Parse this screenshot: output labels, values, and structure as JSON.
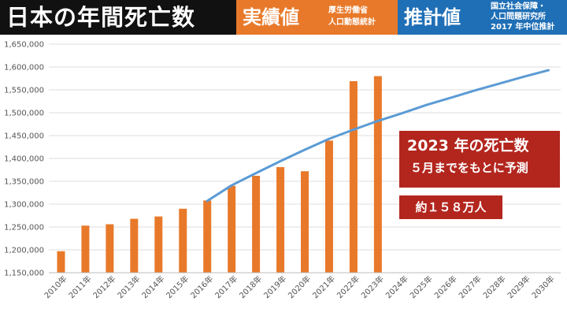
{
  "header": {
    "title": "日本の年間死亡数",
    "actual_label": "実績値",
    "actual_source": [
      "厚生労働省",
      "人口動態統計"
    ],
    "estimate_label": "推計値",
    "estimate_source": [
      "国立社会保障・",
      "人口問題研究所",
      "2017 年中位推計"
    ]
  },
  "callout": {
    "line1": "2023 年の死亡数",
    "line2": "５月までをもとに予測",
    "estimate": "約１５８万人"
  },
  "colors": {
    "header_black": "#111111",
    "actual_orange": "#e8792a",
    "estimate_blue": "#1f6fb6",
    "bar": "#e8792a",
    "line": "#5b9bd5",
    "callout_red": "#b3261e"
  },
  "chart_data": {
    "type": "bar",
    "categories": [
      "2010年",
      "2011年",
      "2012年",
      "2013年",
      "2014年",
      "2015年",
      "2016年",
      "2017年",
      "2018年",
      "2019年",
      "2020年",
      "2021年",
      "2022年",
      "2023年",
      "2024年",
      "2025年",
      "2026年",
      "2027年",
      "2028年",
      "2029年",
      "2030年"
    ],
    "series": [
      {
        "kind": "bar",
        "values": [
          1197000,
          1253000,
          1256000,
          1268000,
          1273000,
          1290000,
          1308000,
          1340000,
          1362000,
          1381000,
          1372000,
          1439000,
          1569000,
          1580000,
          null,
          null,
          null,
          null,
          null,
          null,
          null
        ]
      },
      {
        "kind": "line",
        "values": [
          null,
          null,
          null,
          null,
          null,
          null,
          1307000,
          1341000,
          1368000,
          1394000,
          1419000,
          1443000,
          1463000,
          1482000,
          1499000,
          1517000,
          1533000,
          1549000,
          1564000,
          1579000,
          1593000
        ]
      }
    ],
    "ylim": [
      1150000,
      1650000
    ],
    "yticks": [
      "1,150,000",
      "1,200,000",
      "1,250,000",
      "1,300,000",
      "1,350,000",
      "1,400,000",
      "1,450,000",
      "1,500,000",
      "1,550,000",
      "1,600,000",
      "1,650,000"
    ],
    "grid": true,
    "legend": "none"
  }
}
